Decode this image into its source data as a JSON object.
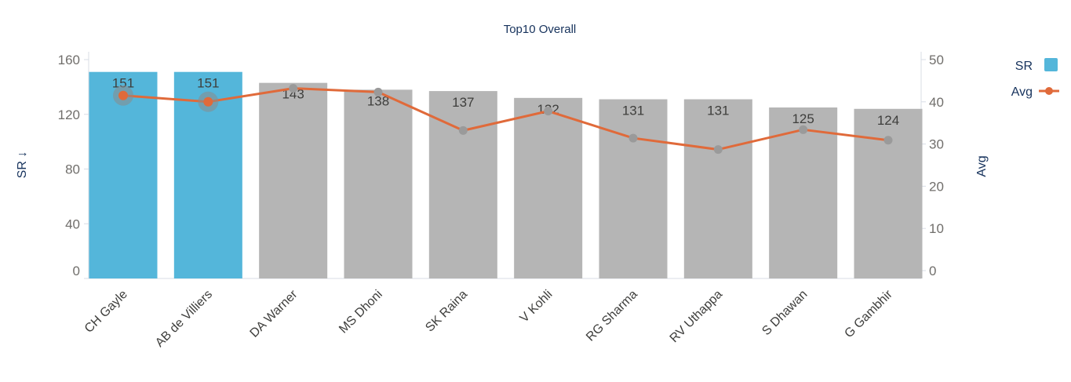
{
  "chart_data": {
    "type": "bar",
    "title": "Top10 Overall",
    "categories": [
      "CH Gayle",
      "AB de Villiers",
      "DA Warner",
      "MS Dhoni",
      "SK Raina",
      "V Kohli",
      "RG Sharma",
      "RV Uthappa",
      "S Dhawan",
      "G Gambhir"
    ],
    "series": [
      {
        "name": "SR",
        "type": "bar",
        "axis": "left",
        "values": [
          151,
          151,
          143,
          138,
          137,
          132,
          131,
          131,
          125,
          124
        ],
        "highlighted": [
          true,
          true,
          false,
          false,
          false,
          false,
          false,
          false,
          false,
          false
        ],
        "color": "#54b6da",
        "muted_color": "#b5b5b5"
      },
      {
        "name": "Avg",
        "type": "line",
        "axis": "right",
        "values": [
          41.5,
          40,
          43.2,
          42.3,
          33.2,
          37.8,
          31.4,
          28.7,
          33.4,
          30.9
        ],
        "color": "#e06a3a",
        "point_color": "#9a9a9a"
      }
    ],
    "ylabel": "SR ↓",
    "y2label": "Avg",
    "yticks": [
      "160",
      "120",
      "80",
      "40",
      "0"
    ],
    "y2ticks": [
      "50",
      "40",
      "30",
      "20",
      "10",
      "0"
    ],
    "legend_position": "top-right",
    "grid": false
  }
}
